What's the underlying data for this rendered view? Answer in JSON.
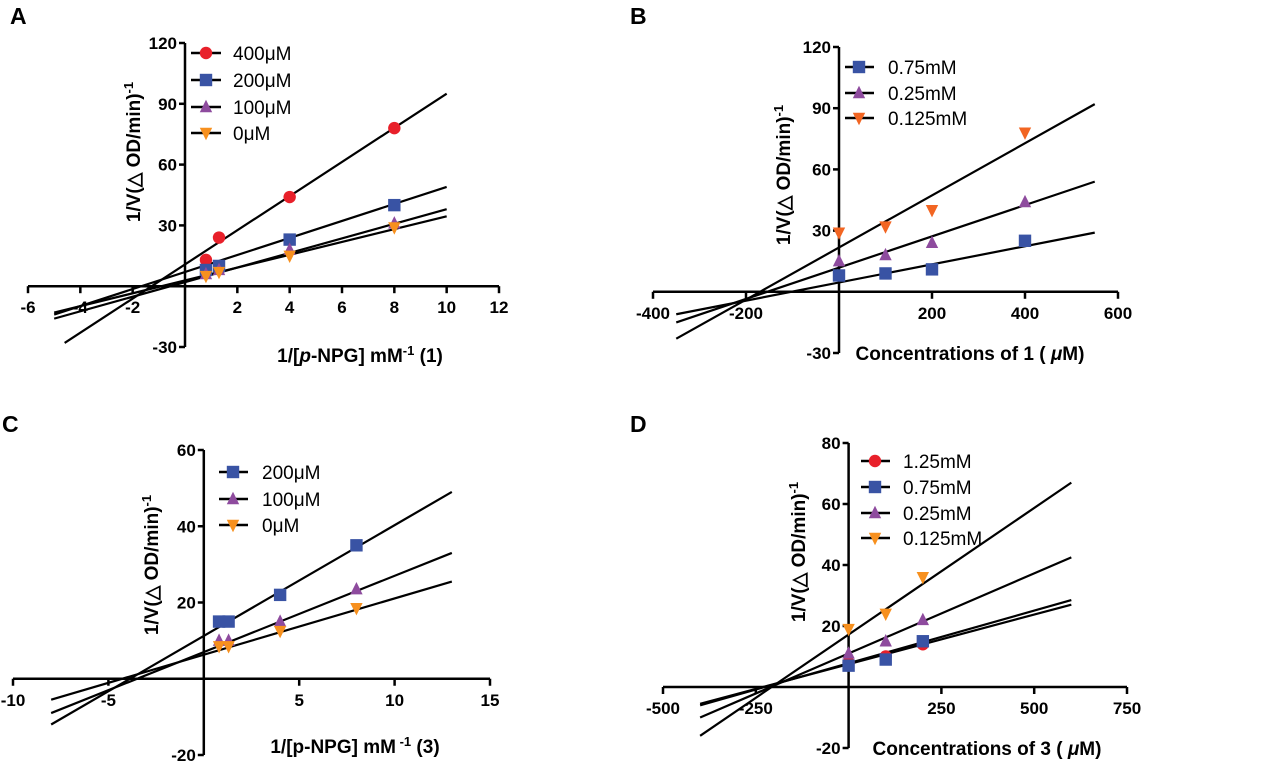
{
  "chart_data": [
    {
      "panel": "A",
      "type": "line",
      "title": "",
      "xlabel": [
        {
          "t": "1/["
        },
        {
          "t": "p",
          "i": true
        },
        {
          "t": "-NPG] mM"
        },
        {
          "t": "-1",
          "sup": true
        },
        {
          "t": " (1)"
        }
      ],
      "ylabel": [
        {
          "t": "1/V(△ OD/min)"
        },
        {
          "t": "-1",
          "sup": true
        }
      ],
      "xlim": [
        -6,
        12
      ],
      "ylim": [
        -30,
        120
      ],
      "xticks": [
        -6,
        -4,
        -2,
        2,
        4,
        6,
        8,
        10,
        12
      ],
      "yticks": [
        -30,
        30,
        60,
        90,
        120
      ],
      "legend_position": "top-left",
      "series": [
        {
          "name": "400μM",
          "marker": "circle",
          "color": "#e8202a",
          "x": [
            0.8,
            1.3,
            4,
            8
          ],
          "y": [
            13,
            24,
            44,
            78
          ],
          "fit": [
            [
              -4.6,
              -28
            ],
            [
              10,
              95
            ]
          ]
        },
        {
          "name": "200μM",
          "marker": "square",
          "color": "#3953a4",
          "x": [
            0.8,
            1.3,
            4,
            8
          ],
          "y": [
            8,
            10,
            23,
            40
          ],
          "fit": [
            [
              -5,
              -14
            ],
            [
              10,
              49
            ]
          ]
        },
        {
          "name": "100μM",
          "marker": "triangle-up",
          "color": "#8e4b9e",
          "x": [
            0.8,
            1.3,
            4,
            8
          ],
          "y": [
            6,
            8,
            18,
            31
          ],
          "fit": [
            [
              -5,
              -16
            ],
            [
              10,
              38
            ]
          ]
        },
        {
          "name": "0μM",
          "marker": "triangle-down",
          "color": "#f7901e",
          "x": [
            0.8,
            1.3,
            4,
            8
          ],
          "y": [
            5,
            7,
            15,
            29
          ],
          "fit": [
            [
              -5,
              -13
            ],
            [
              10,
              34.5
            ]
          ]
        }
      ]
    },
    {
      "panel": "B",
      "type": "line",
      "title": "",
      "xlabel": [
        {
          "t": "Concentrations of 1 ( "
        },
        {
          "t": "μ",
          "i": true
        },
        {
          "t": "M)"
        }
      ],
      "ylabel": [
        {
          "t": "1/V(△ OD/min)"
        },
        {
          "t": "-1",
          "sup": true
        }
      ],
      "xlim": [
        -400,
        600
      ],
      "ylim": [
        -30,
        120
      ],
      "xticks": [
        -400,
        -200,
        200,
        400,
        600
      ],
      "yticks": [
        -30,
        30,
        60,
        90,
        120
      ],
      "legend_position": "top-left",
      "series": [
        {
          "name": "0.75mM",
          "marker": "square",
          "color": "#3953a4",
          "x": [
            0,
            100,
            200,
            400
          ],
          "y": [
            8,
            9,
            11,
            25
          ],
          "fit": [
            [
              -350,
              -11
            ],
            [
              550,
              29
            ]
          ]
        },
        {
          "name": "0.25mM",
          "marker": "triangle-up",
          "color": "#8e4b9e",
          "x": [
            0,
            100,
            200,
            400
          ],
          "y": [
            15,
            18,
            24,
            44
          ],
          "fit": [
            [
              -350,
              -15
            ],
            [
              550,
              54
            ]
          ]
        },
        {
          "name": "0.125mM",
          "marker": "triangle-down",
          "color": "#f26522",
          "x": [
            0,
            100,
            200,
            400
          ],
          "y": [
            29,
            32,
            40,
            78
          ],
          "fit": [
            [
              -350,
              -23
            ],
            [
              550,
              92
            ]
          ]
        }
      ]
    },
    {
      "panel": "C",
      "type": "line",
      "title": "",
      "xlabel": [
        {
          "t": "1/[p-NPG] mM"
        },
        {
          "t": " -1",
          "sup": true
        },
        {
          "t": " (3)"
        }
      ],
      "ylabel": [
        {
          "t": "1/V(△ OD/min)"
        },
        {
          "t": "-1",
          "sup": true
        }
      ],
      "xlim": [
        -10,
        15
      ],
      "ylim": [
        -20,
        60
      ],
      "xticks": [
        -10,
        -5,
        5,
        10,
        15
      ],
      "yticks": [
        -20,
        20,
        40,
        60
      ],
      "legend_position": "top-left",
      "series": [
        {
          "name": "200μM",
          "marker": "square",
          "color": "#3953a4",
          "x": [
            0.8,
            1.3,
            4,
            8
          ],
          "y": [
            15,
            15,
            22,
            35
          ],
          "fit": [
            [
              -8,
              -12
            ],
            [
              13,
              49
            ]
          ]
        },
        {
          "name": "100μM",
          "marker": "triangle-up",
          "color": "#8e4b9e",
          "x": [
            0.8,
            1.3,
            4,
            8
          ],
          "y": [
            10,
            10,
            15,
            23.5
          ],
          "fit": [
            [
              -8,
              -9
            ],
            [
              13,
              33
            ]
          ]
        },
        {
          "name": "0μM",
          "marker": "triangle-down",
          "color": "#f7901e",
          "x": [
            0.8,
            1.3,
            4,
            8
          ],
          "y": [
            8.5,
            8.5,
            12.5,
            18.5
          ],
          "fit": [
            [
              -8,
              -5.5
            ],
            [
              13,
              25.5
            ]
          ]
        }
      ]
    },
    {
      "panel": "D",
      "type": "line",
      "title": "",
      "xlabel": [
        {
          "t": "Concentrations of 3 ( "
        },
        {
          "t": "μ",
          "i": true
        },
        {
          "t": "M)"
        }
      ],
      "ylabel": [
        {
          "t": "1/V(△ OD/min)"
        },
        {
          "t": "-1",
          "sup": true
        }
      ],
      "xlim": [
        -500,
        750
      ],
      "ylim": [
        -20,
        80
      ],
      "xticks": [
        -500,
        -250,
        250,
        500,
        750
      ],
      "yticks": [
        -20,
        20,
        40,
        60,
        80
      ],
      "legend_position": "top-left",
      "series": [
        {
          "name": "1.25mM",
          "marker": "circle",
          "color": "#e8202a",
          "x": [
            0,
            100,
            200
          ],
          "y": [
            8,
            10,
            14
          ],
          "fit": [
            [
              -400,
              -5.5
            ],
            [
              600,
              27
            ]
          ]
        },
        {
          "name": "0.75mM",
          "marker": "square",
          "color": "#3953a4",
          "x": [
            0,
            100,
            200
          ],
          "y": [
            7,
            9,
            15
          ],
          "fit": [
            [
              -400,
              -6
            ],
            [
              600,
              28.5
            ]
          ]
        },
        {
          "name": "0.25mM",
          "marker": "triangle-up",
          "color": "#8e4b9e",
          "x": [
            0,
            100,
            200
          ],
          "y": [
            11,
            15,
            22
          ],
          "fit": [
            [
              -400,
              -10
            ],
            [
              600,
              42.5
            ]
          ]
        },
        {
          "name": "0.125mM",
          "marker": "triangle-down",
          "color": "#f7901e",
          "x": [
            0,
            100,
            200
          ],
          "y": [
            19,
            24,
            36
          ],
          "fit": [
            [
              -400,
              -16
            ],
            [
              600,
              67
            ]
          ]
        }
      ]
    }
  ]
}
